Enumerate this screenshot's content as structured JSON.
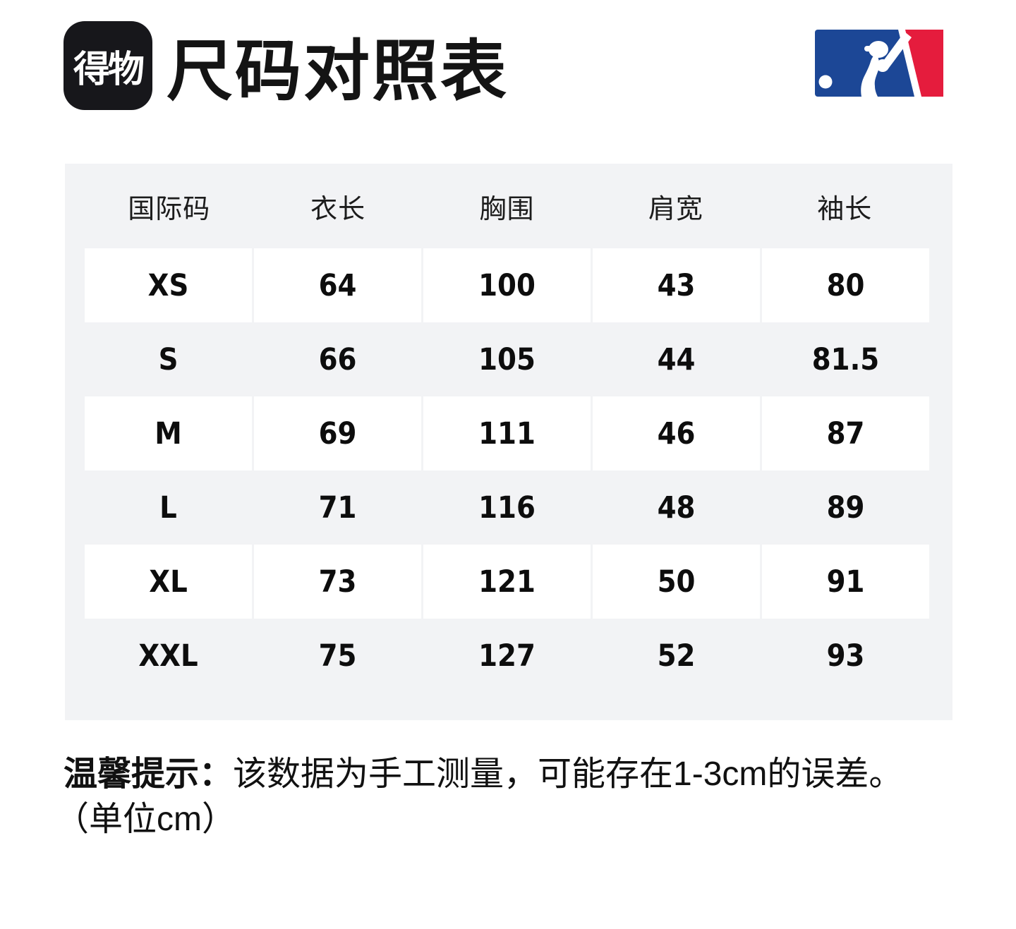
{
  "header": {
    "app_logo_text": "得物",
    "title": "尺码对照表",
    "mlb_logo_name": "MLB"
  },
  "table": {
    "columns": [
      "国际码",
      "衣长",
      "胸围",
      "肩宽",
      "袖长"
    ],
    "rows": [
      {
        "size": "XS",
        "values": [
          "64",
          "100",
          "43",
          "80"
        ]
      },
      {
        "size": "S",
        "values": [
          "66",
          "105",
          "44",
          "81.5"
        ]
      },
      {
        "size": "M",
        "values": [
          "69",
          "111",
          "46",
          "87"
        ]
      },
      {
        "size": "L",
        "values": [
          "71",
          "116",
          "48",
          "89"
        ]
      },
      {
        "size": "XL",
        "values": [
          "73",
          "121",
          "50",
          "91"
        ]
      },
      {
        "size": "XXL",
        "values": [
          "75",
          "127",
          "52",
          "93"
        ]
      }
    ]
  },
  "note": {
    "prefix": "温馨提示：",
    "line1": "该数据为手工测量，可能存在1-3cm的误差。",
    "line2": "（单位cm）"
  },
  "colors": {
    "mlb_blue": "#1c4796",
    "mlb_red": "#e51c3d",
    "table_bg": "#f2f3f5",
    "logo_bg": "#17171b",
    "text": "#111111"
  }
}
